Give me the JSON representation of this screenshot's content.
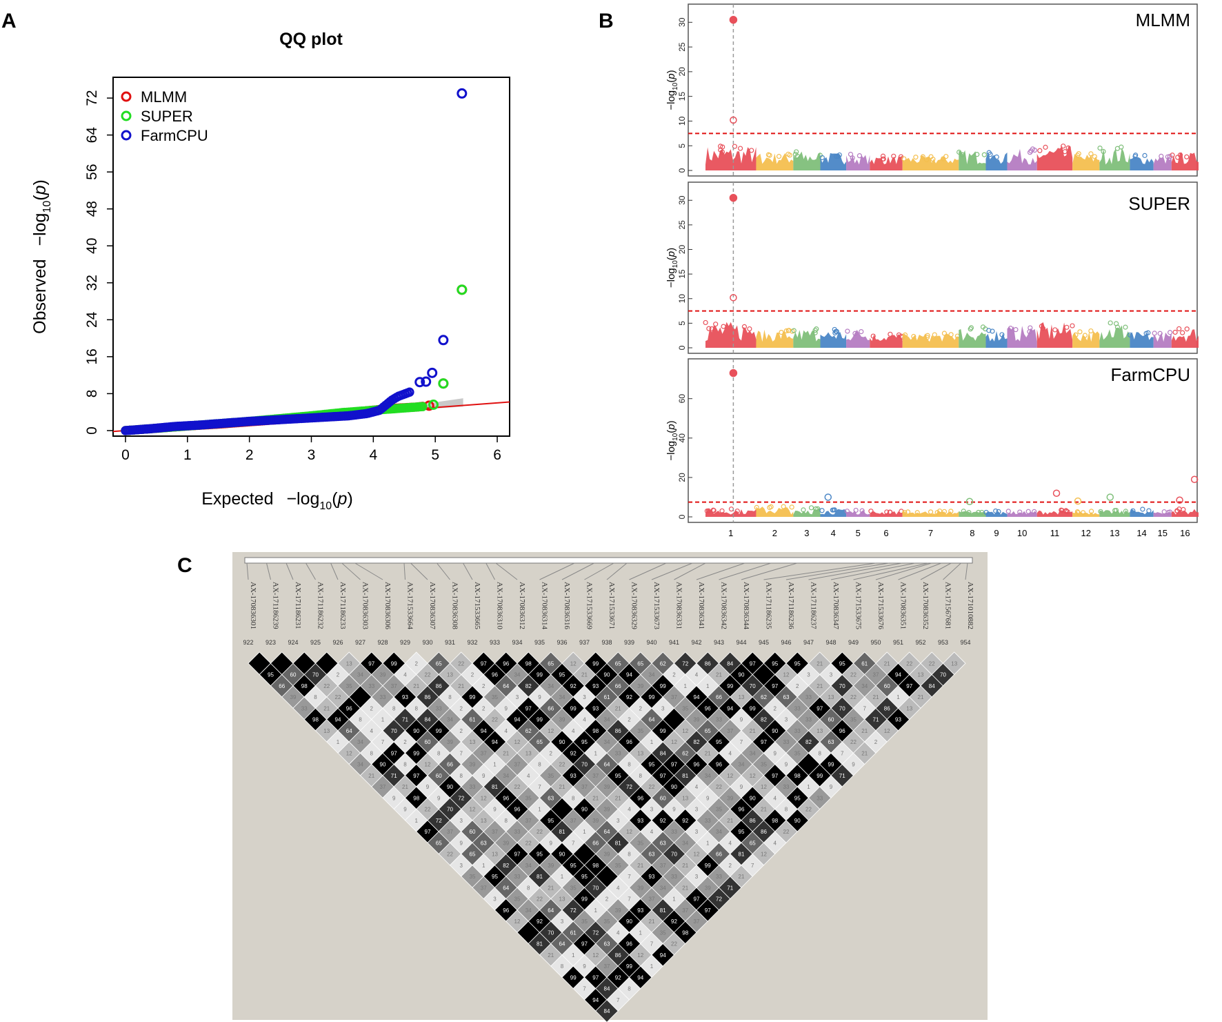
{
  "panels": {
    "a": {
      "letter": "A"
    },
    "b": {
      "letter": "B"
    },
    "c": {
      "letter": "C"
    }
  },
  "colors": {
    "mlmm": "#e01010",
    "super": "#22dd22",
    "farmcpu": "#1111cc",
    "threshold": "#e01010",
    "ld_background": "#d6d2c9",
    "chrom_palette": [
      "#e8505a",
      "#f4bf4f",
      "#7fbf7a",
      "#4a86c6",
      "#b57cc2"
    ]
  },
  "chart_data": [
    {
      "type": "scatter",
      "title": "QQ plot",
      "xlabel": "Expected",
      "ylabel": "Observed",
      "axis_math": {
        "pre": "−log",
        "sub": "10",
        "open": "(",
        "var": "p",
        "close": ")"
      },
      "xlim": [
        0,
        6
      ],
      "ylim": [
        0,
        76
      ],
      "xticks": [
        0,
        1,
        2,
        3,
        4,
        5,
        6
      ],
      "yticks": [
        0,
        8,
        16,
        24,
        32,
        40,
        48,
        56,
        64,
        72
      ],
      "legend_position": "top-left",
      "series": [
        {
          "name": "MLMM",
          "color_key": "mlmm",
          "points": [
            [
              0.0,
              0.0
            ],
            [
              0.5,
              0.5
            ],
            [
              1.0,
              1.0
            ],
            [
              1.5,
              1.4
            ],
            [
              2.0,
              1.9
            ],
            [
              2.5,
              2.4
            ],
            [
              3.0,
              2.9
            ],
            [
              3.5,
              3.6
            ],
            [
              3.9,
              4.3
            ],
            [
              4.3,
              4.8
            ],
            [
              4.7,
              5.1
            ],
            [
              4.9,
              5.4
            ],
            [
              5.13,
              10.2
            ],
            [
              5.43,
              30.5
            ]
          ]
        },
        {
          "name": "SUPER",
          "color_key": "super",
          "points": [
            [
              0.0,
              0.0
            ],
            [
              0.5,
              0.5
            ],
            [
              1.0,
              1.0
            ],
            [
              1.5,
              1.5
            ],
            [
              2.0,
              2.0
            ],
            [
              2.5,
              2.6
            ],
            [
              3.0,
              3.2
            ],
            [
              3.5,
              3.9
            ],
            [
              3.9,
              4.3
            ],
            [
              4.3,
              4.7
            ],
            [
              4.6,
              5.0
            ],
            [
              4.8,
              5.2
            ],
            [
              4.97,
              5.6
            ],
            [
              5.13,
              10.2
            ],
            [
              5.43,
              30.5
            ]
          ]
        },
        {
          "name": "FarmCPU",
          "color_key": "farmcpu",
          "points": [
            [
              0.0,
              0.0
            ],
            [
              0.4,
              0.4
            ],
            [
              0.8,
              0.9
            ],
            [
              1.2,
              1.2
            ],
            [
              1.6,
              1.6
            ],
            [
              2.0,
              2.0
            ],
            [
              2.4,
              2.3
            ],
            [
              2.8,
              2.6
            ],
            [
              3.2,
              2.9
            ],
            [
              3.6,
              3.2
            ],
            [
              3.9,
              3.7
            ],
            [
              4.1,
              4.4
            ],
            [
              4.2,
              5.5
            ],
            [
              4.3,
              6.6
            ],
            [
              4.4,
              7.4
            ],
            [
              4.5,
              7.9
            ],
            [
              4.6,
              8.4
            ],
            [
              4.75,
              10.5
            ],
            [
              4.85,
              10.6
            ],
            [
              4.95,
              12.5
            ],
            [
              5.13,
              19.6
            ],
            [
              5.43,
              73.0
            ]
          ]
        }
      ],
      "reference_line": {
        "color_key": "threshold",
        "slope": 1.0,
        "intercept": 0.0
      }
    },
    {
      "type": "scatter",
      "subtype": "manhattan",
      "ylabel": "−log10(p)",
      "ylabel_math": {
        "pre": "−log",
        "sub": "10",
        "open": "(",
        "var": "p",
        "close": ")"
      },
      "chromosomes": [
        "1",
        "2",
        "3",
        "4",
        "5",
        "6",
        "7",
        "8",
        "9",
        "10",
        "11",
        "12",
        "13",
        "14",
        "15",
        "16"
      ],
      "chrom_widths": [
        9.0,
        6.6,
        4.8,
        4.6,
        4.2,
        5.8,
        10.0,
        4.8,
        3.8,
        5.3,
        6.3,
        4.8,
        5.4,
        4.2,
        3.2,
        4.8
      ],
      "panels": [
        {
          "name": "MLMM",
          "ylim": [
            0,
            32
          ],
          "yticks": [
            0,
            5,
            10,
            15,
            20,
            25,
            30
          ],
          "threshold": 7.5,
          "background_max": [
            5.0,
            3.7,
            4.0,
            3.7,
            3.3,
            3.0,
            3.0,
            4.2,
            3.7,
            4.4,
            5.0,
            3.5,
            4.8,
            3.2,
            3.0,
            3.7
          ],
          "peaks": [
            {
              "chrom": "1",
              "pos": 0.55,
              "value": 30.5,
              "filled": true
            },
            {
              "chrom": "1",
              "pos": 0.55,
              "value": 10.2,
              "filled": false
            }
          ]
        },
        {
          "name": "SUPER",
          "ylim": [
            0,
            32
          ],
          "yticks": [
            0,
            5,
            10,
            15,
            20,
            25,
            30
          ],
          "threshold": 7.5,
          "background_max": [
            5.4,
            3.7,
            4.0,
            3.8,
            4.0,
            3.0,
            3.0,
            4.3,
            3.8,
            4.5,
            5.2,
            3.6,
            5.1,
            3.3,
            3.2,
            4.3
          ],
          "peaks": [
            {
              "chrom": "1",
              "pos": 0.55,
              "value": 30.5,
              "filled": true
            },
            {
              "chrom": "1",
              "pos": 0.55,
              "value": 10.2,
              "filled": false
            }
          ]
        },
        {
          "name": "FarmCPU",
          "ylim": [
            0,
            76
          ],
          "yticks": [
            0,
            20,
            40,
            60
          ],
          "threshold": 7.5,
          "background_max": [
            4.0,
            5.5,
            5.0,
            4.0,
            3.5,
            3.0,
            3.0,
            3.0,
            3.0,
            3.0,
            3.5,
            3.0,
            3.5,
            4.0,
            3.0,
            4.0
          ],
          "peaks": [
            {
              "chrom": "1",
              "pos": 0.55,
              "value": 73.0,
              "filled": true
            },
            {
              "chrom": "4",
              "pos": 0.3,
              "value": 10.0,
              "filled": false
            },
            {
              "chrom": "11",
              "pos": 0.55,
              "value": 12.0,
              "filled": false
            },
            {
              "chrom": "13",
              "pos": 0.35,
              "value": 10.0,
              "filled": false
            },
            {
              "chrom": "16",
              "pos": 0.85,
              "value": 19.0,
              "filled": false
            },
            {
              "chrom": "12",
              "pos": 0.2,
              "value": 8.0,
              "filled": false
            },
            {
              "chrom": "16",
              "pos": 0.3,
              "value": 8.5,
              "filled": false
            },
            {
              "chrom": "8",
              "pos": 0.4,
              "value": 7.8,
              "filled": false
            }
          ]
        }
      ]
    },
    {
      "type": "heatmap",
      "subtype": "ld-triangle",
      "markers": [
        "AX-170836301",
        "AX-171186239",
        "AX-171186231",
        "AX-171186232",
        "AX-171186233",
        "AX-170836303",
        "AX-170836306",
        "AX-171533664",
        "AX-170836307",
        "AX-170836308",
        "AX-171533665",
        "AX-170836310",
        "AX-170836312",
        "AX-170836314",
        "AX-170836316",
        "AX-171533669",
        "AX-171533671",
        "AX-170836329",
        "AX-171533673",
        "AX-170836331",
        "AX-170836341",
        "AX-170836342",
        "AX-170836344",
        "AX-171186235",
        "AX-171186236",
        "AX-171186237",
        "AX-170836347",
        "AX-171533675",
        "AX-171533676",
        "AX-170836351",
        "AX-170836352",
        "AX-171567681",
        "AX-171010882"
      ],
      "indices": [
        "922",
        "923",
        "924",
        "925",
        "926",
        "927",
        "928",
        "929",
        "930",
        "931",
        "932",
        "933",
        "934",
        "935",
        "936",
        "937",
        "938",
        "939",
        "940",
        "941",
        "942",
        "943",
        "944",
        "945",
        "946",
        "947",
        "948",
        "949",
        "950",
        "951",
        "952",
        "953",
        "954"
      ],
      "value_set": [
        1,
        2,
        3,
        4,
        7,
        8,
        9,
        12,
        13,
        21,
        22,
        33,
        34,
        35,
        37,
        39,
        40,
        60,
        61,
        62,
        63,
        64,
        65,
        66,
        70,
        71,
        72,
        81,
        82,
        84,
        86,
        88,
        90,
        92,
        93,
        94,
        95,
        96,
        97,
        98,
        99,
        100
      ],
      "highlighted_labels": [
        {
          "i": 0,
          "j": 1,
          "value": ""
        },
        {
          "i": 1,
          "j": 2,
          "value": ""
        },
        {
          "i": 2,
          "j": 3,
          "value": ""
        },
        {
          "i": 3,
          "j": 4,
          "value": ""
        },
        {
          "i": 5,
          "j": 6,
          "value": "97"
        },
        {
          "i": 6,
          "j": 7,
          "value": "99"
        },
        {
          "i": 8,
          "j": 9,
          "value": "65"
        },
        {
          "i": 10,
          "j": 11,
          "value": "97"
        },
        {
          "i": 12,
          "j": 13,
          "value": "98"
        },
        {
          "i": 13,
          "j": 14,
          "value": "65"
        },
        {
          "i": 15,
          "j": 16,
          "value": "99"
        },
        {
          "i": 16,
          "j": 17,
          "value": "65"
        },
        {
          "i": 17,
          "j": 18,
          "value": "65"
        },
        {
          "i": 19,
          "j": 20,
          "value": "72"
        },
        {
          "i": 21,
          "j": 22,
          "value": "84"
        },
        {
          "i": 22,
          "j": 23,
          "value": "97"
        },
        {
          "i": 23,
          "j": 24,
          "value": "95"
        },
        {
          "i": 24,
          "j": 25,
          "value": "95"
        },
        {
          "i": 26,
          "j": 27,
          "value": "95"
        },
        {
          "i": 27,
          "j": 28,
          "value": "61"
        },
        {
          "i": 28,
          "j": 29,
          "value": "21"
        },
        {
          "i": 29,
          "j": 30,
          "value": "22"
        },
        {
          "i": 30,
          "j": 31,
          "value": "22"
        },
        {
          "i": 31,
          "j": 32,
          "value": "13"
        }
      ]
    }
  ]
}
